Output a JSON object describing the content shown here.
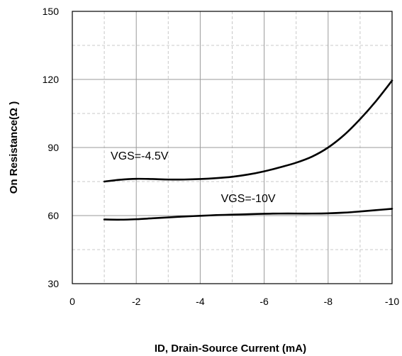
{
  "chart_data": {
    "type": "line",
    "title": "",
    "xlabel": "ID, Drain-Source Current (mA)",
    "ylabel": "On Resistance(Ω )",
    "xlim": [
      0,
      -10
    ],
    "ylim": [
      30,
      150
    ],
    "x_ticks": [
      0,
      -2,
      -4,
      -6,
      -8,
      -10
    ],
    "x_tick_labels": [
      "0",
      "-2",
      "-4",
      "-6",
      "-8",
      "-10"
    ],
    "y_ticks": [
      30,
      60,
      90,
      120,
      150
    ],
    "y_tick_labels": [
      "30",
      "60",
      "90",
      "120",
      "150"
    ],
    "grid": {
      "major": true,
      "minor_dashed": true
    },
    "legend": "none",
    "series": [
      {
        "x": [
          -1,
          -1.5,
          -2,
          -2.5,
          -3,
          -3.5,
          -4,
          -4.5,
          -5,
          -5.5,
          -6,
          -6.5,
          -7,
          -7.5,
          -8,
          -8.5,
          -9,
          -9.5,
          -10
        ],
        "values": [
          75,
          75.8,
          76.2,
          76.1,
          75.9,
          75.9,
          76.1,
          76.5,
          77.1,
          78.1,
          79.5,
          81.3,
          83.3,
          86.0,
          90.0,
          95.5,
          102.5,
          110.5,
          119.5
        ],
        "color": "#000000"
      },
      {
        "x": [
          -1,
          -1.5,
          -2,
          -2.5,
          -3,
          -3.5,
          -4,
          -4.5,
          -5,
          -5.5,
          -6,
          -6.5,
          -7,
          -7.5,
          -8,
          -8.5,
          -9,
          -9.5,
          -10
        ],
        "values": [
          58.3,
          58.2,
          58.4,
          58.8,
          59.2,
          59.6,
          59.9,
          60.2,
          60.4,
          60.6,
          60.8,
          60.9,
          60.9,
          60.9,
          61.0,
          61.3,
          61.8,
          62.4,
          63.0
        ],
        "color": "#000000"
      }
    ],
    "annotations": [
      {
        "text": "VGS=-4.5V",
        "x": -2.1,
        "y": 84.7
      },
      {
        "text": "VGS=-10V",
        "x": -5.5,
        "y": 66
      }
    ]
  }
}
